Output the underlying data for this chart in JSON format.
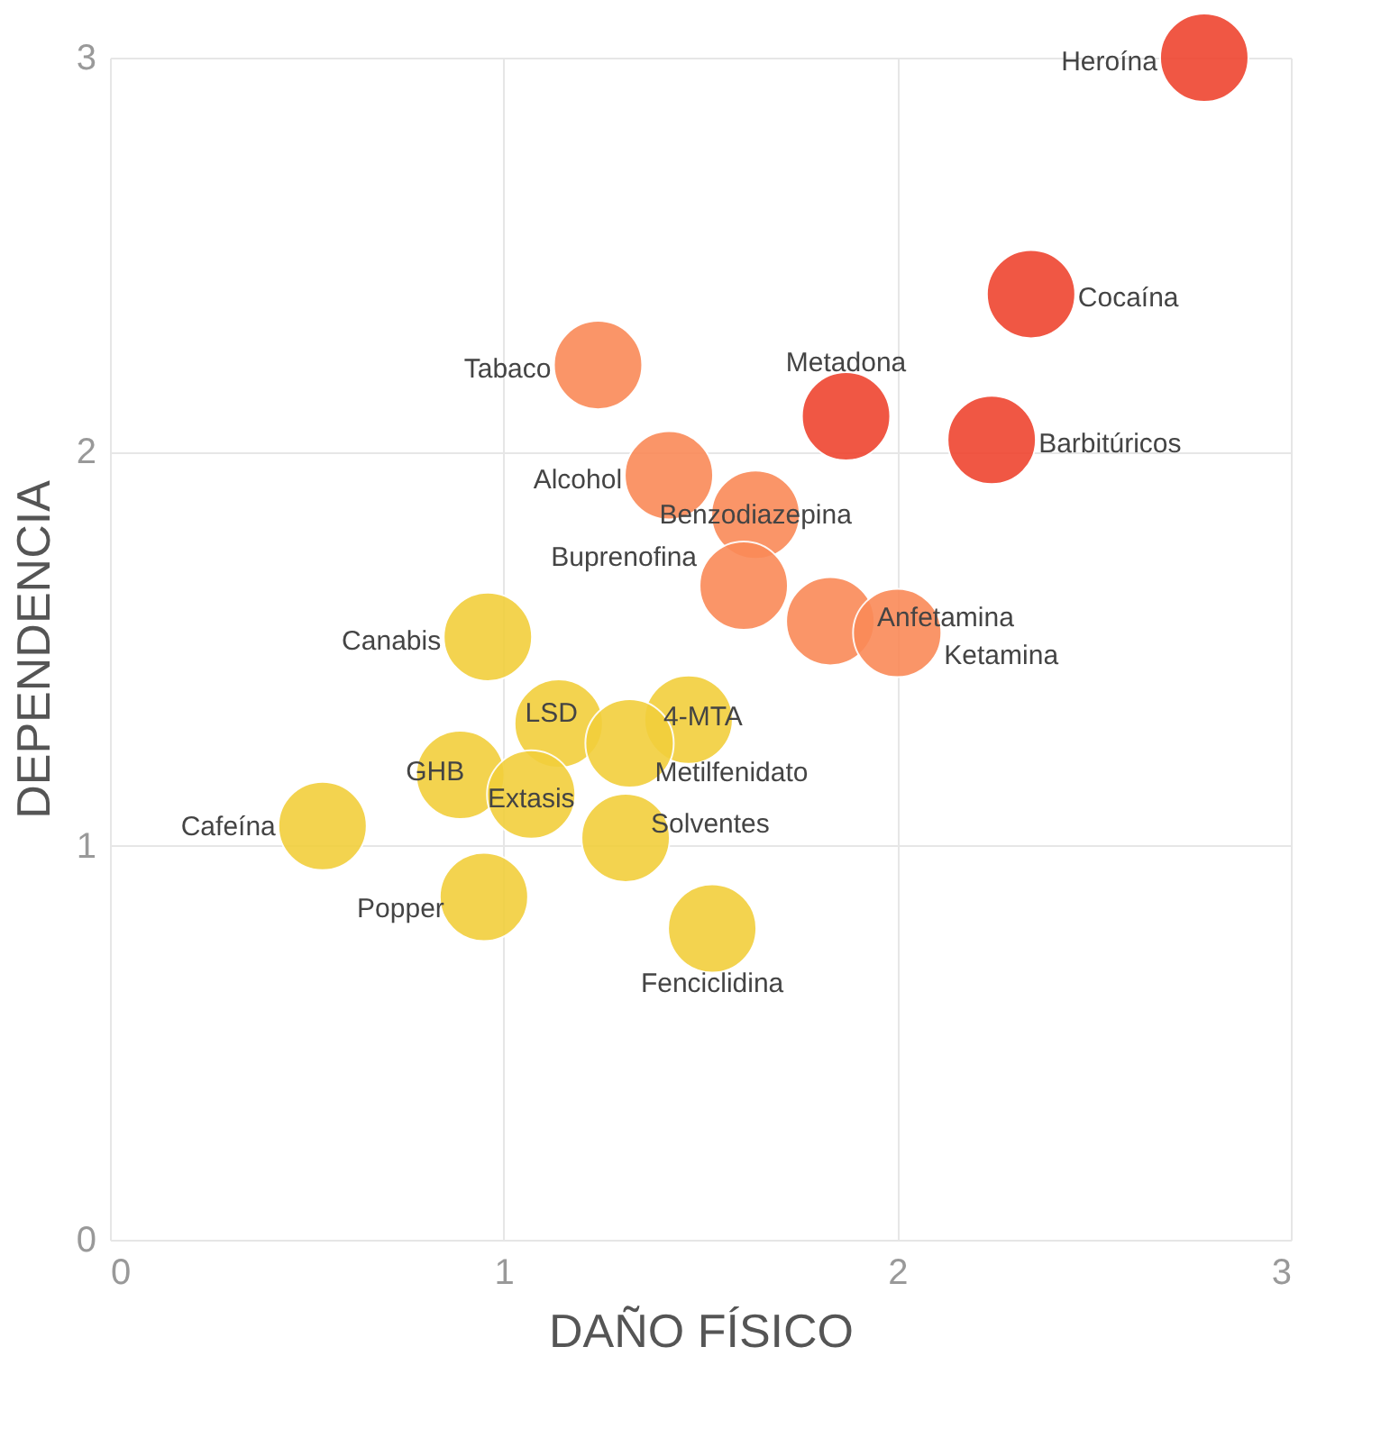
{
  "chart_data": {
    "type": "scatter",
    "xlabel": "DAÑO FÍSICO",
    "ylabel": "DEPENDENCIA",
    "xlim": [
      0,
      3
    ],
    "ylim": [
      0,
      3
    ],
    "xticks": [
      0,
      1,
      2,
      3
    ],
    "yticks": [
      0,
      1,
      2,
      3
    ],
    "grid": true,
    "legend": false,
    "marker": "circle",
    "series": [
      {
        "name": "Heroína",
        "color": "#ef4530",
        "x": [
          2.78
        ],
        "values": [
          3.0
        ]
      },
      {
        "name": "Cocaína",
        "color": "#ef4530",
        "x": [
          2.34
        ],
        "values": [
          2.4
        ]
      },
      {
        "name": "Barbitúricos",
        "color": "#ef4530",
        "x": [
          2.24
        ],
        "values": [
          2.03
        ]
      },
      {
        "name": "Metadona",
        "color": "#ef4530",
        "x": [
          1.87
        ],
        "values": [
          2.09
        ]
      },
      {
        "name": "Tabaco",
        "color": "#fa8a58",
        "x": [
          1.24
        ],
        "values": [
          2.22
        ]
      },
      {
        "name": "Alcohol",
        "color": "#fa8a58",
        "x": [
          1.42
        ],
        "values": [
          1.94
        ]
      },
      {
        "name": "Benzodiazepina",
        "color": "#fa8a58",
        "x": [
          1.64
        ],
        "values": [
          1.84
        ]
      },
      {
        "name": "Buprenofina",
        "color": "#fa8a58",
        "x": [
          1.61
        ],
        "values": [
          1.66
        ]
      },
      {
        "name": "Anfetamina",
        "color": "#fa8a58",
        "x": [
          1.83
        ],
        "values": [
          1.57
        ]
      },
      {
        "name": "Ketamina",
        "color": "#fa8a58",
        "x": [
          2.0
        ],
        "values": [
          1.54
        ]
      },
      {
        "name": "Canabis",
        "color": "#f2cf3c",
        "x": [
          0.96
        ],
        "values": [
          1.53
        ]
      },
      {
        "name": "LSD",
        "color": "#f2cf3c",
        "x": [
          1.14
        ],
        "values": [
          1.31
        ]
      },
      {
        "name": "4-MTA",
        "color": "#f2cf3c",
        "x": [
          1.47
        ],
        "values": [
          1.32
        ]
      },
      {
        "name": "Metilfenidato",
        "color": "#f2cf3c",
        "x": [
          1.32
        ],
        "values": [
          1.26
        ]
      },
      {
        "name": "GHB",
        "color": "#f2cf3c",
        "x": [
          0.89
        ],
        "values": [
          1.18
        ]
      },
      {
        "name": "Extasis",
        "color": "#f2cf3c",
        "x": [
          1.07
        ],
        "values": [
          1.13
        ]
      },
      {
        "name": "Solventes",
        "color": "#f2cf3c",
        "x": [
          1.31
        ],
        "values": [
          1.02
        ]
      },
      {
        "name": "Cafeína",
        "color": "#f2cf3c",
        "x": [
          0.54
        ],
        "values": [
          1.05
        ]
      },
      {
        "name": "Popper",
        "color": "#f2cf3c",
        "x": [
          0.95
        ],
        "values": [
          0.87
        ]
      },
      {
        "name": "Fenciclidina",
        "color": "#f2cf3c",
        "x": [
          1.53
        ],
        "values": [
          0.79
        ]
      }
    ]
  }
}
